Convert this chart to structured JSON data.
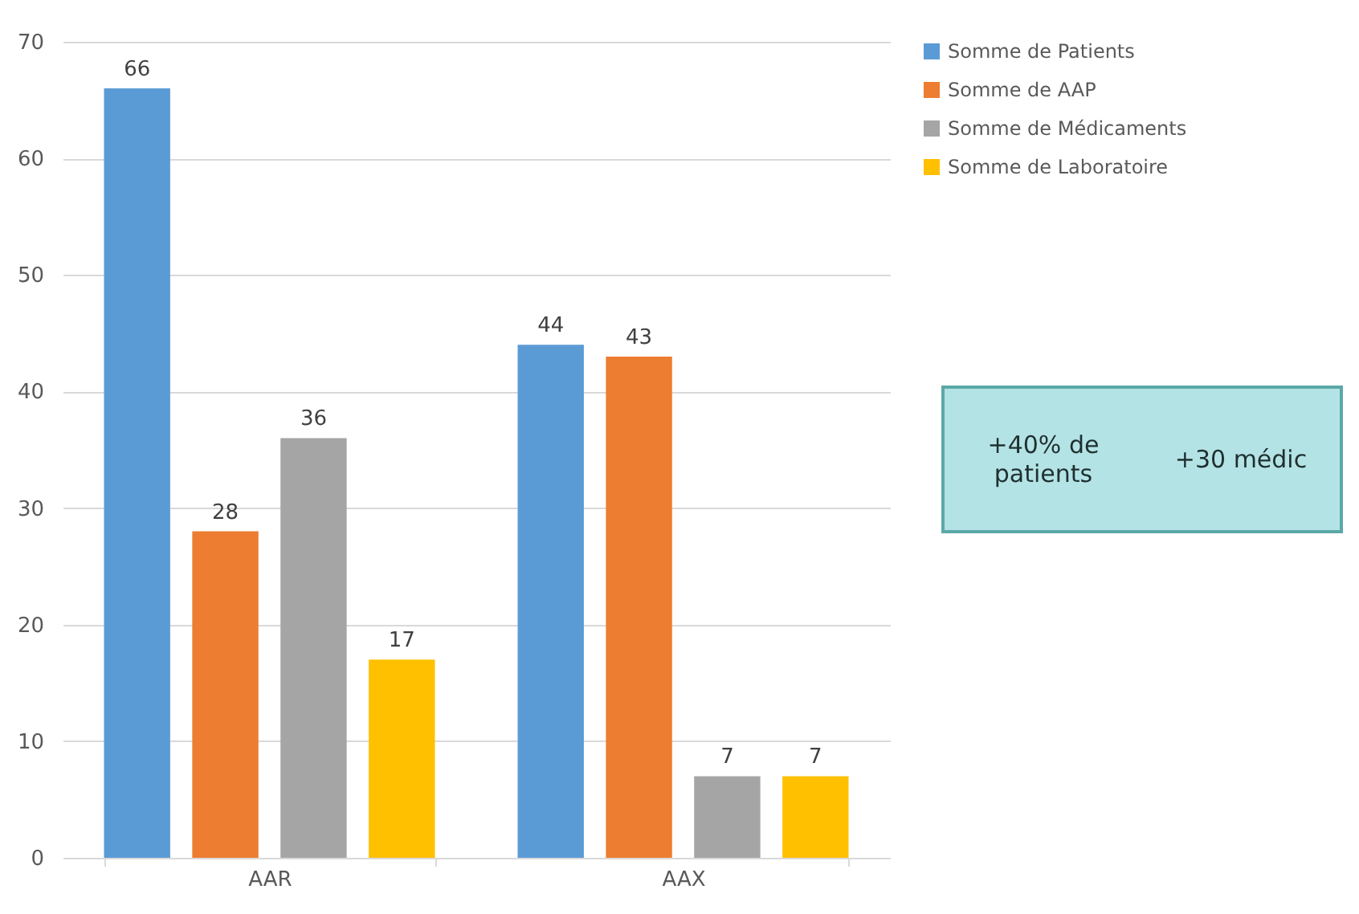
{
  "chart_data": {
    "type": "bar",
    "categories": [
      "AAR",
      "AAX"
    ],
    "series": [
      {
        "name": "Somme de Patients",
        "color": "#5b9bd5",
        "values": [
          66,
          44
        ]
      },
      {
        "name": "Somme de AAP",
        "color": "#ed7d31",
        "values": [
          28,
          43
        ]
      },
      {
        "name": "Somme de Médicaments",
        "color": "#a5a5a5",
        "values": [
          36,
          7
        ]
      },
      {
        "name": "Somme de Laboratoire",
        "color": "#ffc000",
        "values": [
          17,
          7
        ]
      }
    ],
    "ylim": [
      0,
      70
    ],
    "yticks": [
      0,
      10,
      20,
      30,
      40,
      50,
      60,
      70
    ],
    "grid": "y",
    "legend": "top right",
    "data_labels": true,
    "annotations": [
      "+40% de patients",
      "+30 médic"
    ]
  }
}
